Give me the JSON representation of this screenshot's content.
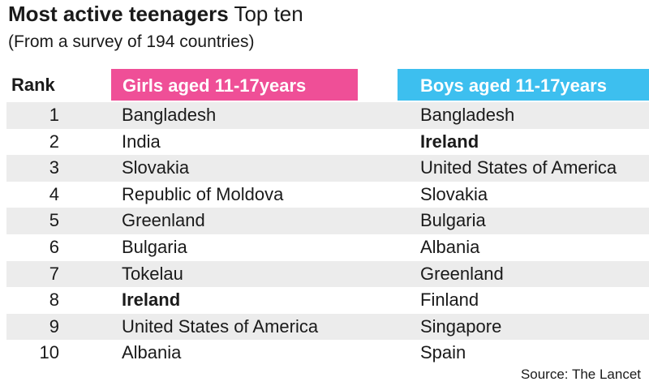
{
  "title_bold": "Most active teenagers",
  "title_rest": "Top ten",
  "subtitle": "(From a survey of 194 countries)",
  "source": "Source: The Lancet",
  "colors": {
    "girls": "#ef4f97",
    "boys": "#3dbfef",
    "row_alt": "#ececec"
  },
  "chart_data": {
    "type": "table",
    "columns": [
      "Rank",
      "Girls aged 11-17years",
      "Boys aged 11-17years"
    ],
    "rows": [
      {
        "rank": "1",
        "girls": "Bangladesh",
        "boys": "Bangladesh"
      },
      {
        "rank": "2",
        "girls": "India",
        "boys": "Ireland",
        "boys_bold": true
      },
      {
        "rank": "3",
        "girls": "Slovakia",
        "boys": "United States of America"
      },
      {
        "rank": "4",
        "girls": "Republic of Moldova",
        "boys": "Slovakia"
      },
      {
        "rank": "5",
        "girls": "Greenland",
        "boys": "Bulgaria"
      },
      {
        "rank": "6",
        "girls": "Bulgaria",
        "boys": "Albania"
      },
      {
        "rank": "7",
        "girls": "Tokelau",
        "boys": "Greenland"
      },
      {
        "rank": "8",
        "girls": "Ireland",
        "girls_bold": true,
        "boys": "Finland"
      },
      {
        "rank": "9",
        "girls": "United States of America",
        "boys": "Singapore"
      },
      {
        "rank": "10",
        "girls": "Albania",
        "boys": "Spain"
      }
    ]
  }
}
